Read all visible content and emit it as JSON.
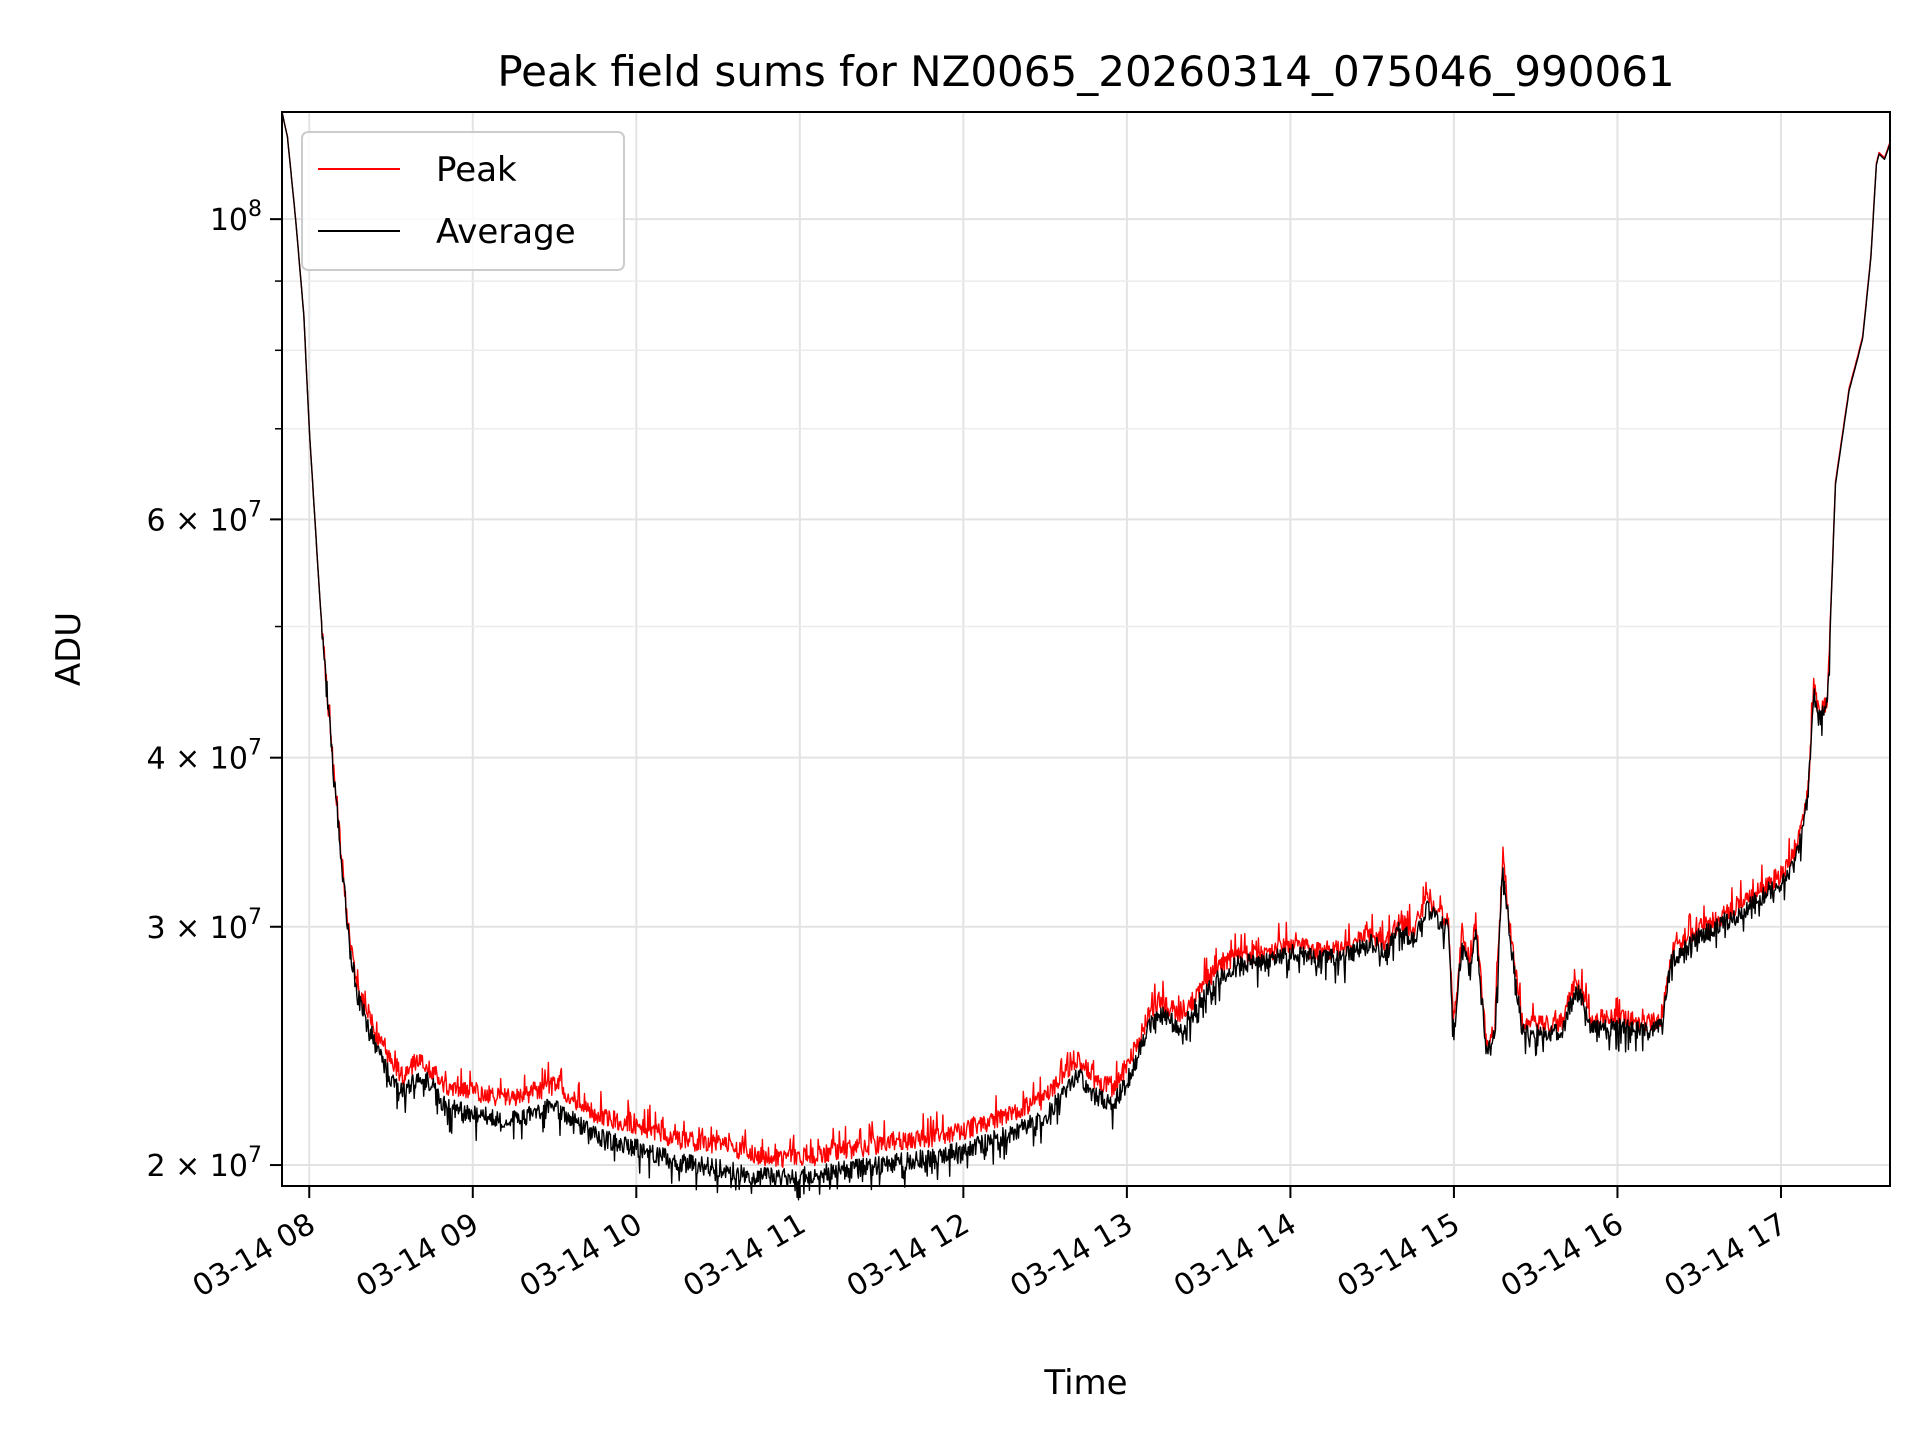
{
  "chart_data": {
    "type": "line",
    "title": "Peak field sums for NZ0065_20260314_075046_990061",
    "xlabel": "Time",
    "ylabel": "ADU",
    "yscale": "log",
    "xlim": [
      "2026-03-14 07:50",
      "2026-03-14 17:40"
    ],
    "ylim": [
      19300000,
      120000000
    ],
    "grid": true,
    "legend": "upper-left",
    "x_ticks": [
      "03-14 08",
      "03-14 09",
      "03-14 10",
      "03-14 11",
      "03-14 12",
      "03-14 13",
      "03-14 14",
      "03-14 15",
      "03-14 16",
      "03-14 17"
    ],
    "y_major_ticks": [
      {
        "value": 20000000,
        "mantissa": "2",
        "exp": "7"
      },
      {
        "value": 30000000,
        "mantissa": "3",
        "exp": "7"
      },
      {
        "value": 40000000,
        "mantissa": "4",
        "exp": "7"
      },
      {
        "value": 60000000,
        "mantissa": "6",
        "exp": "7"
      },
      {
        "value": 100000000,
        "mantissa": "",
        "exp": "8"
      }
    ],
    "y_minor_values": [
      50000000,
      70000000,
      80000000,
      90000000
    ],
    "series": [
      {
        "name": "Peak",
        "color": "#ff0000",
        "x": [
          "2026-03-14 07:50",
          "2026-03-14 07:52",
          "2026-03-14 07:55",
          "2026-03-14 07:58",
          "2026-03-14 08:00",
          "2026-03-14 08:04",
          "2026-03-14 08:08",
          "2026-03-14 08:12",
          "2026-03-14 08:15",
          "2026-03-14 08:18",
          "2026-03-14 08:22",
          "2026-03-14 08:25",
          "2026-03-14 08:30",
          "2026-03-14 08:35",
          "2026-03-14 08:40",
          "2026-03-14 08:45",
          "2026-03-14 08:50",
          "2026-03-14 09:00",
          "2026-03-14 09:15",
          "2026-03-14 09:30",
          "2026-03-14 09:45",
          "2026-03-14 10:00",
          "2026-03-14 10:15",
          "2026-03-14 10:30",
          "2026-03-14 10:45",
          "2026-03-14 11:00",
          "2026-03-14 11:15",
          "2026-03-14 11:30",
          "2026-03-14 11:45",
          "2026-03-14 12:00",
          "2026-03-14 12:15",
          "2026-03-14 12:30",
          "2026-03-14 12:42",
          "2026-03-14 12:48",
          "2026-03-14 12:55",
          "2026-03-14 13:00",
          "2026-03-14 13:08",
          "2026-03-14 13:12",
          "2026-03-14 13:20",
          "2026-03-14 13:30",
          "2026-03-14 13:40",
          "2026-03-14 13:50",
          "2026-03-14 14:00",
          "2026-03-14 14:10",
          "2026-03-14 14:20",
          "2026-03-14 14:30",
          "2026-03-14 14:35",
          "2026-03-14 14:40",
          "2026-03-14 14:45",
          "2026-03-14 14:50",
          "2026-03-14 14:55",
          "2026-03-14 14:58",
          "2026-03-14 15:00",
          "2026-03-14 15:03",
          "2026-03-14 15:06",
          "2026-03-14 15:08",
          "2026-03-14 15:12",
          "2026-03-14 15:15",
          "2026-03-14 15:18",
          "2026-03-14 15:20",
          "2026-03-14 15:25",
          "2026-03-14 15:30",
          "2026-03-14 15:35",
          "2026-03-14 15:40",
          "2026-03-14 15:43",
          "2026-03-14 15:46",
          "2026-03-14 15:50",
          "2026-03-14 16:00",
          "2026-03-14 16:10",
          "2026-03-14 16:15",
          "2026-03-14 16:16",
          "2026-03-14 16:20",
          "2026-03-14 16:30",
          "2026-03-14 16:45",
          "2026-03-14 17:00",
          "2026-03-14 17:05",
          "2026-03-14 17:08",
          "2026-03-14 17:10",
          "2026-03-14 17:12",
          "2026-03-14 17:14",
          "2026-03-14 17:17",
          "2026-03-14 17:20",
          "2026-03-14 17:25",
          "2026-03-14 17:28",
          "2026-03-14 17:30",
          "2026-03-14 17:33",
          "2026-03-14 17:35",
          "2026-03-14 17:36",
          "2026-03-14 17:38",
          "2026-03-14 17:40"
        ],
        "values": [
          120000000,
          115000000,
          100000000,
          85000000,
          70000000,
          52000000,
          41000000,
          33500000,
          29000000,
          27000000,
          25800000,
          24800000,
          23800000,
          23200000,
          24000000,
          23500000,
          22800000,
          22600000,
          22400000,
          22900000,
          21800000,
          21400000,
          20900000,
          20700000,
          20300000,
          20200000,
          20500000,
          20700000,
          20900000,
          21200000,
          21700000,
          22400000,
          24000000,
          23100000,
          22800000,
          23600000,
          25800000,
          26500000,
          25700000,
          27500000,
          28600000,
          28600000,
          29100000,
          28800000,
          28900000,
          29600000,
          29100000,
          30300000,
          29700000,
          31400000,
          30600000,
          30200000,
          25200000,
          29700000,
          28200000,
          30300000,
          24500000,
          25300000,
          33900000,
          30600000,
          25500000,
          25400000,
          25400000,
          25500000,
          27000000,
          27200000,
          25600000,
          25700000,
          25500000,
          25600000,
          25700000,
          28800000,
          29900000,
          31100000,
          32800000,
          33900000,
          35800000,
          38000000,
          45000000,
          43000000,
          44000000,
          64000000,
          75000000,
          79000000,
          82000000,
          94000000,
          110000000,
          112000000,
          111000000,
          114000000
        ]
      },
      {
        "name": "Average",
        "color": "#000000",
        "x": [
          "2026-03-14 07:50",
          "2026-03-14 07:52",
          "2026-03-14 07:55",
          "2026-03-14 07:58",
          "2026-03-14 08:00",
          "2026-03-14 08:04",
          "2026-03-14 08:08",
          "2026-03-14 08:12",
          "2026-03-14 08:15",
          "2026-03-14 08:18",
          "2026-03-14 08:22",
          "2026-03-14 08:25",
          "2026-03-14 08:30",
          "2026-03-14 08:35",
          "2026-03-14 08:40",
          "2026-03-14 08:45",
          "2026-03-14 08:50",
          "2026-03-14 09:00",
          "2026-03-14 09:15",
          "2026-03-14 09:30",
          "2026-03-14 09:45",
          "2026-03-14 10:00",
          "2026-03-14 10:15",
          "2026-03-14 10:30",
          "2026-03-14 10:45",
          "2026-03-14 11:00",
          "2026-03-14 11:15",
          "2026-03-14 11:30",
          "2026-03-14 11:45",
          "2026-03-14 12:00",
          "2026-03-14 12:15",
          "2026-03-14 12:30",
          "2026-03-14 12:42",
          "2026-03-14 12:48",
          "2026-03-14 12:55",
          "2026-03-14 13:00",
          "2026-03-14 13:08",
          "2026-03-14 13:12",
          "2026-03-14 13:20",
          "2026-03-14 13:30",
          "2026-03-14 13:40",
          "2026-03-14 13:50",
          "2026-03-14 14:00",
          "2026-03-14 14:10",
          "2026-03-14 14:20",
          "2026-03-14 14:30",
          "2026-03-14 14:35",
          "2026-03-14 14:40",
          "2026-03-14 14:45",
          "2026-03-14 14:50",
          "2026-03-14 14:55",
          "2026-03-14 14:58",
          "2026-03-14 15:00",
          "2026-03-14 15:03",
          "2026-03-14 15:06",
          "2026-03-14 15:08",
          "2026-03-14 15:12",
          "2026-03-14 15:15",
          "2026-03-14 15:18",
          "2026-03-14 15:20",
          "2026-03-14 15:25",
          "2026-03-14 15:30",
          "2026-03-14 15:35",
          "2026-03-14 15:40",
          "2026-03-14 15:43",
          "2026-03-14 15:46",
          "2026-03-14 15:50",
          "2026-03-14 16:00",
          "2026-03-14 16:10",
          "2026-03-14 16:15",
          "2026-03-14 16:16",
          "2026-03-14 16:20",
          "2026-03-14 16:30",
          "2026-03-14 16:45",
          "2026-03-14 17:00",
          "2026-03-14 17:05",
          "2026-03-14 17:08",
          "2026-03-14 17:10",
          "2026-03-14 17:12",
          "2026-03-14 17:14",
          "2026-03-14 17:17",
          "2026-03-14 17:20",
          "2026-03-14 17:25",
          "2026-03-14 17:28",
          "2026-03-14 17:30",
          "2026-03-14 17:33",
          "2026-03-14 17:35",
          "2026-03-14 17:36",
          "2026-03-14 17:38",
          "2026-03-14 17:40"
        ],
        "values": [
          120000000,
          115000000,
          100000000,
          85000000,
          70000000,
          52000000,
          41000000,
          33300000,
          28700000,
          26600000,
          25300000,
          24300000,
          23200000,
          22700000,
          23400000,
          22900000,
          22100000,
          21800000,
          21600000,
          22100000,
          21000000,
          20600000,
          20100000,
          19900000,
          19600000,
          19600000,
          19800000,
          20000000,
          20200000,
          20500000,
          21000000,
          21700000,
          23300000,
          22500000,
          22200000,
          23000000,
          25200000,
          25900000,
          25200000,
          27000000,
          28200000,
          28200000,
          28700000,
          28400000,
          28500000,
          29200000,
          28700000,
          29900000,
          29300000,
          30900000,
          30200000,
          29800000,
          24800000,
          29300000,
          27800000,
          29900000,
          24100000,
          24900000,
          33500000,
          30200000,
          25100000,
          25000000,
          25000000,
          25100000,
          26500000,
          26800000,
          25200000,
          25300000,
          25100000,
          25200000,
          25300000,
          28400000,
          29500000,
          30700000,
          32400000,
          33500000,
          35400000,
          37700000,
          44700000,
          42700000,
          43700000,
          63700000,
          74700000,
          78700000,
          81700000,
          93700000,
          109700000,
          111700000,
          110700000,
          113700000
        ]
      }
    ]
  }
}
